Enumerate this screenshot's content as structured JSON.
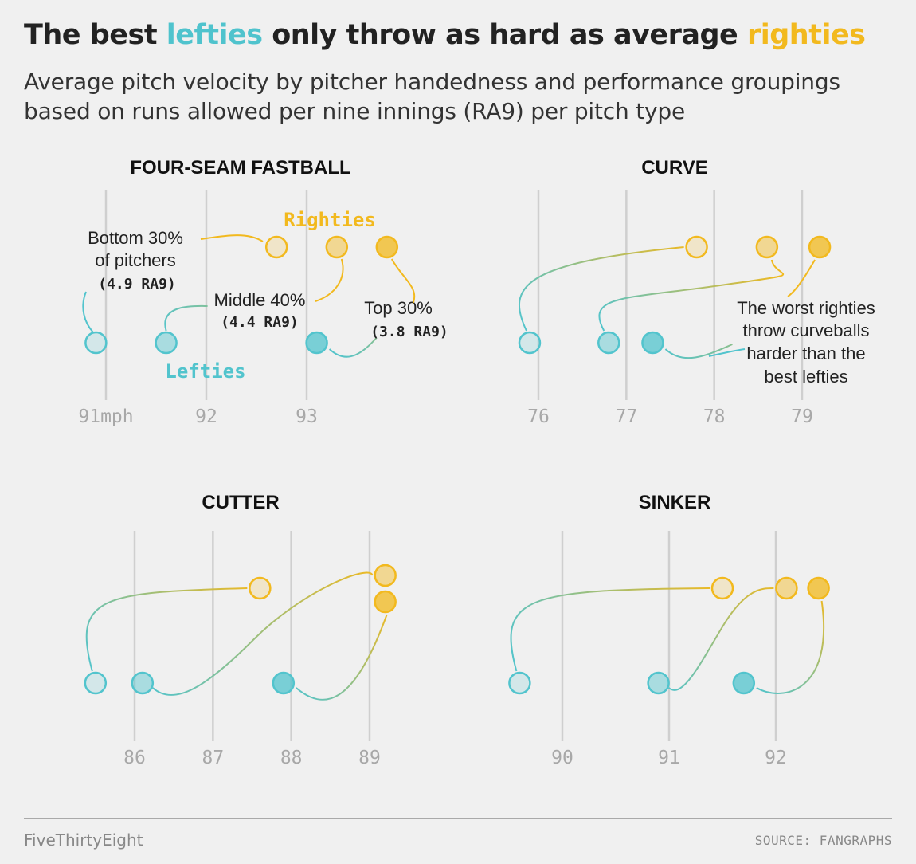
{
  "header": {
    "title_part1": "The best ",
    "title_lefties": "lefties",
    "title_part2": " only throw as hard as average ",
    "title_righties": "righties",
    "subtitle": "Average pitch velocity by pitcher handedness and performance groupings based on runs allowed per nine innings (RA9) per pitch type"
  },
  "colors": {
    "lefties": "#52c4cd",
    "righties": "#f2b91e",
    "gridline": "#cfcfcf",
    "tick_text": "#a8a8a8",
    "panel_title": "#111111",
    "annotation": "#222222"
  },
  "chart_data": [
    {
      "type": "scatter",
      "title": "FOUR-SEAM FASTBALL",
      "ticks": [
        "91mph",
        "92",
        "93"
      ],
      "tick_values": [
        91,
        92,
        93
      ],
      "series": [
        {
          "name": "Righties",
          "groups": [
            "Bottom 30% of pitchers (4.9 RA9)",
            "Middle 40% (4.4 RA9)",
            "Top 30% (3.8 RA9)"
          ],
          "values": [
            92.7,
            93.3,
            93.8
          ]
        },
        {
          "name": "Lefties",
          "groups": [
            "Bottom 30% of pitchers (4.9 RA9)",
            "Middle 40% (4.4 RA9)",
            "Top 30% (3.8 RA9)"
          ],
          "values": [
            90.9,
            91.6,
            93.1
          ]
        }
      ],
      "annotations": {
        "righties_label": "Righties",
        "lefties_label": "Lefties",
        "bottom_line1": "Bottom 30%",
        "bottom_line2": "of pitchers",
        "bottom_ra9": "(4.9 RA9)",
        "middle_line1": "Middle 40%",
        "middle_ra9": "(4.4 RA9)",
        "top_line1": "Top 30%",
        "top_ra9": "(3.8 RA9)"
      }
    },
    {
      "type": "scatter",
      "title": "CURVE",
      "ticks": [
        "76",
        "77",
        "78",
        "79"
      ],
      "tick_values": [
        76,
        77,
        78,
        79
      ],
      "series": [
        {
          "name": "Righties",
          "values": [
            77.8,
            78.6,
            79.2
          ]
        },
        {
          "name": "Lefties",
          "values": [
            75.9,
            76.8,
            77.3
          ]
        }
      ],
      "annotations": {
        "note_line1": "The worst righties",
        "note_line2": "throw curveballs",
        "note_line3": "harder than the",
        "note_line4": "best lefties"
      }
    },
    {
      "type": "scatter",
      "title": "CUTTER",
      "ticks": [
        "86",
        "87",
        "88",
        "89"
      ],
      "tick_values": [
        86,
        87,
        88,
        89
      ],
      "series": [
        {
          "name": "Righties",
          "values": [
            87.6,
            89.2,
            89.2
          ]
        },
        {
          "name": "Lefties",
          "values": [
            85.5,
            86.1,
            87.9
          ]
        }
      ]
    },
    {
      "type": "scatter",
      "title": "SINKER",
      "ticks": [
        "90",
        "91",
        "92"
      ],
      "tick_values": [
        90,
        91,
        92
      ],
      "series": [
        {
          "name": "Righties",
          "values": [
            91.5,
            92.1,
            92.4
          ]
        },
        {
          "name": "Lefties",
          "values": [
            89.6,
            90.9,
            91.7
          ]
        }
      ]
    }
  ],
  "footer": {
    "brand": "FiveThirtyEight",
    "source": "SOURCE: FANGRAPHS"
  }
}
